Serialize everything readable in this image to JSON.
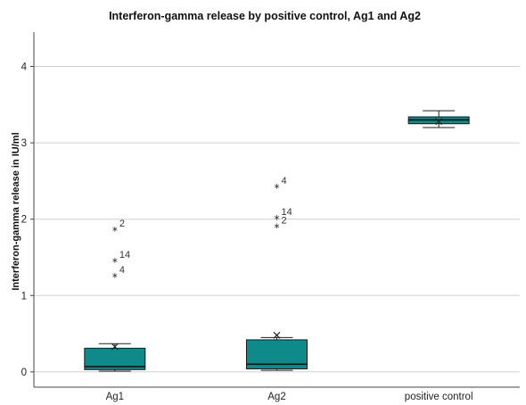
{
  "chart_data": {
    "type": "box",
    "title": "Interferon-gamma release by positive control, Ag1 and Ag2",
    "ylabel": "Interferon-gamma release in IU/ml",
    "xlabel": "",
    "ylim": [
      -0.2,
      4.45
    ],
    "yticks": [
      "0",
      "1",
      "2",
      "3",
      "4"
    ],
    "ytick_values": [
      0,
      1,
      2,
      3,
      4
    ],
    "grid": "horizontal",
    "box_color": "#0e8a8a",
    "categories": [
      "Ag1",
      "Ag2",
      "positive control"
    ],
    "boxes": [
      {
        "category": "Ag1",
        "whisker_low": 0.01,
        "q1": 0.03,
        "median": 0.07,
        "q3": 0.31,
        "whisker_high": 0.37,
        "mean": 0.33,
        "outliers": [
          {
            "value": 1.87,
            "label": "2"
          },
          {
            "value": 1.46,
            "label": "14"
          },
          {
            "value": 1.26,
            "label": "4"
          }
        ]
      },
      {
        "category": "Ag2",
        "whisker_low": 0.02,
        "q1": 0.04,
        "median": 0.1,
        "q3": 0.42,
        "whisker_high": 0.45,
        "mean": 0.48,
        "outliers": [
          {
            "value": 2.43,
            "label": "4"
          },
          {
            "value": 2.02,
            "label": "14"
          },
          {
            "value": 1.91,
            "label": "2"
          }
        ]
      },
      {
        "category": "positive control",
        "whisker_low": 3.2,
        "q1": 3.25,
        "median": 3.3,
        "q3": 3.34,
        "whisker_high": 3.42,
        "mean": 3.28,
        "outliers": []
      }
    ]
  }
}
